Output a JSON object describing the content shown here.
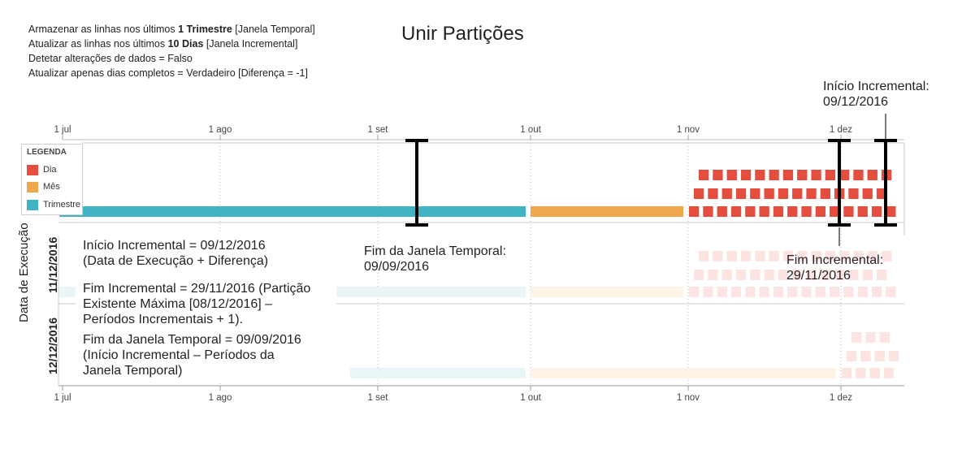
{
  "title": "Unir Partições",
  "settings": [
    {
      "pre": "Armazenar as linhas nos últimos ",
      "bold": "1 Trimestre",
      "post": " [Janela Temporal]"
    },
    {
      "pre": "Atualizar as linhas nos últimos ",
      "bold": "10 Dias",
      "post": " [Janela Incremental]"
    },
    {
      "pre": "Detetar alterações de dados = Falso",
      "bold": "",
      "post": ""
    },
    {
      "pre": "Atualizar apenas dias completos = Verdadeiro [Diferença = -1]",
      "bold": "",
      "post": ""
    }
  ],
  "axis": {
    "ticks": [
      "1 jul",
      "1 ago",
      "1 set",
      "1 out",
      "1 nov",
      "1 dez"
    ]
  },
  "legend": {
    "title": "LEGENDA",
    "items": [
      {
        "label": "Dia",
        "color": "#e34e3e"
      },
      {
        "label": "Mês",
        "color": "#f0a84f"
      },
      {
        "label": "Trimestre",
        "color": "#41b3c2"
      }
    ]
  },
  "y_axis_label": "Data de Execução",
  "row_labels": [
    "11/12/2016",
    "12/12/2016"
  ],
  "callouts": {
    "incremental_start": {
      "line1": "Início Incremental:",
      "line2": "09/12/2016"
    },
    "window_end": {
      "line1": "Fim da Janela Temporal:",
      "line2": "09/09/2016"
    },
    "incremental_end": {
      "line1": "Fim Incremental:",
      "line2": "29/11/2016"
    }
  },
  "notes": [
    "Início Incremental = 09/12/2016 (Data de Execução + Diferença)",
    "Fim Incremental = 29/11/2016 (Partição Existente Máxima [08/12/2016] – Períodos Incrementais + 1).",
    "Fim da Janela Temporal = 09/09/2016 (Início Incremental – Períodos da Janela Temporal)"
  ],
  "notes_lines": [
    [
      "Início Incremental = 09/12/2016",
      "(Data de Execução + Diferença)"
    ],
    [
      "Fim Incremental = 29/11/2016 (Partição",
      "Existente Máxima [08/12/2016] –",
      "Períodos Incrementais + 1)."
    ],
    [
      "Fim da Janela Temporal = 09/09/2016",
      "(Início Incremental – Períodos da",
      "Janela Temporal)"
    ]
  ],
  "colors": {
    "day": "#e34e3e",
    "month": "#f0a84f",
    "quarter": "#41b3c2",
    "grid": "#b8b8b8",
    "bracket": "#000000"
  }
}
